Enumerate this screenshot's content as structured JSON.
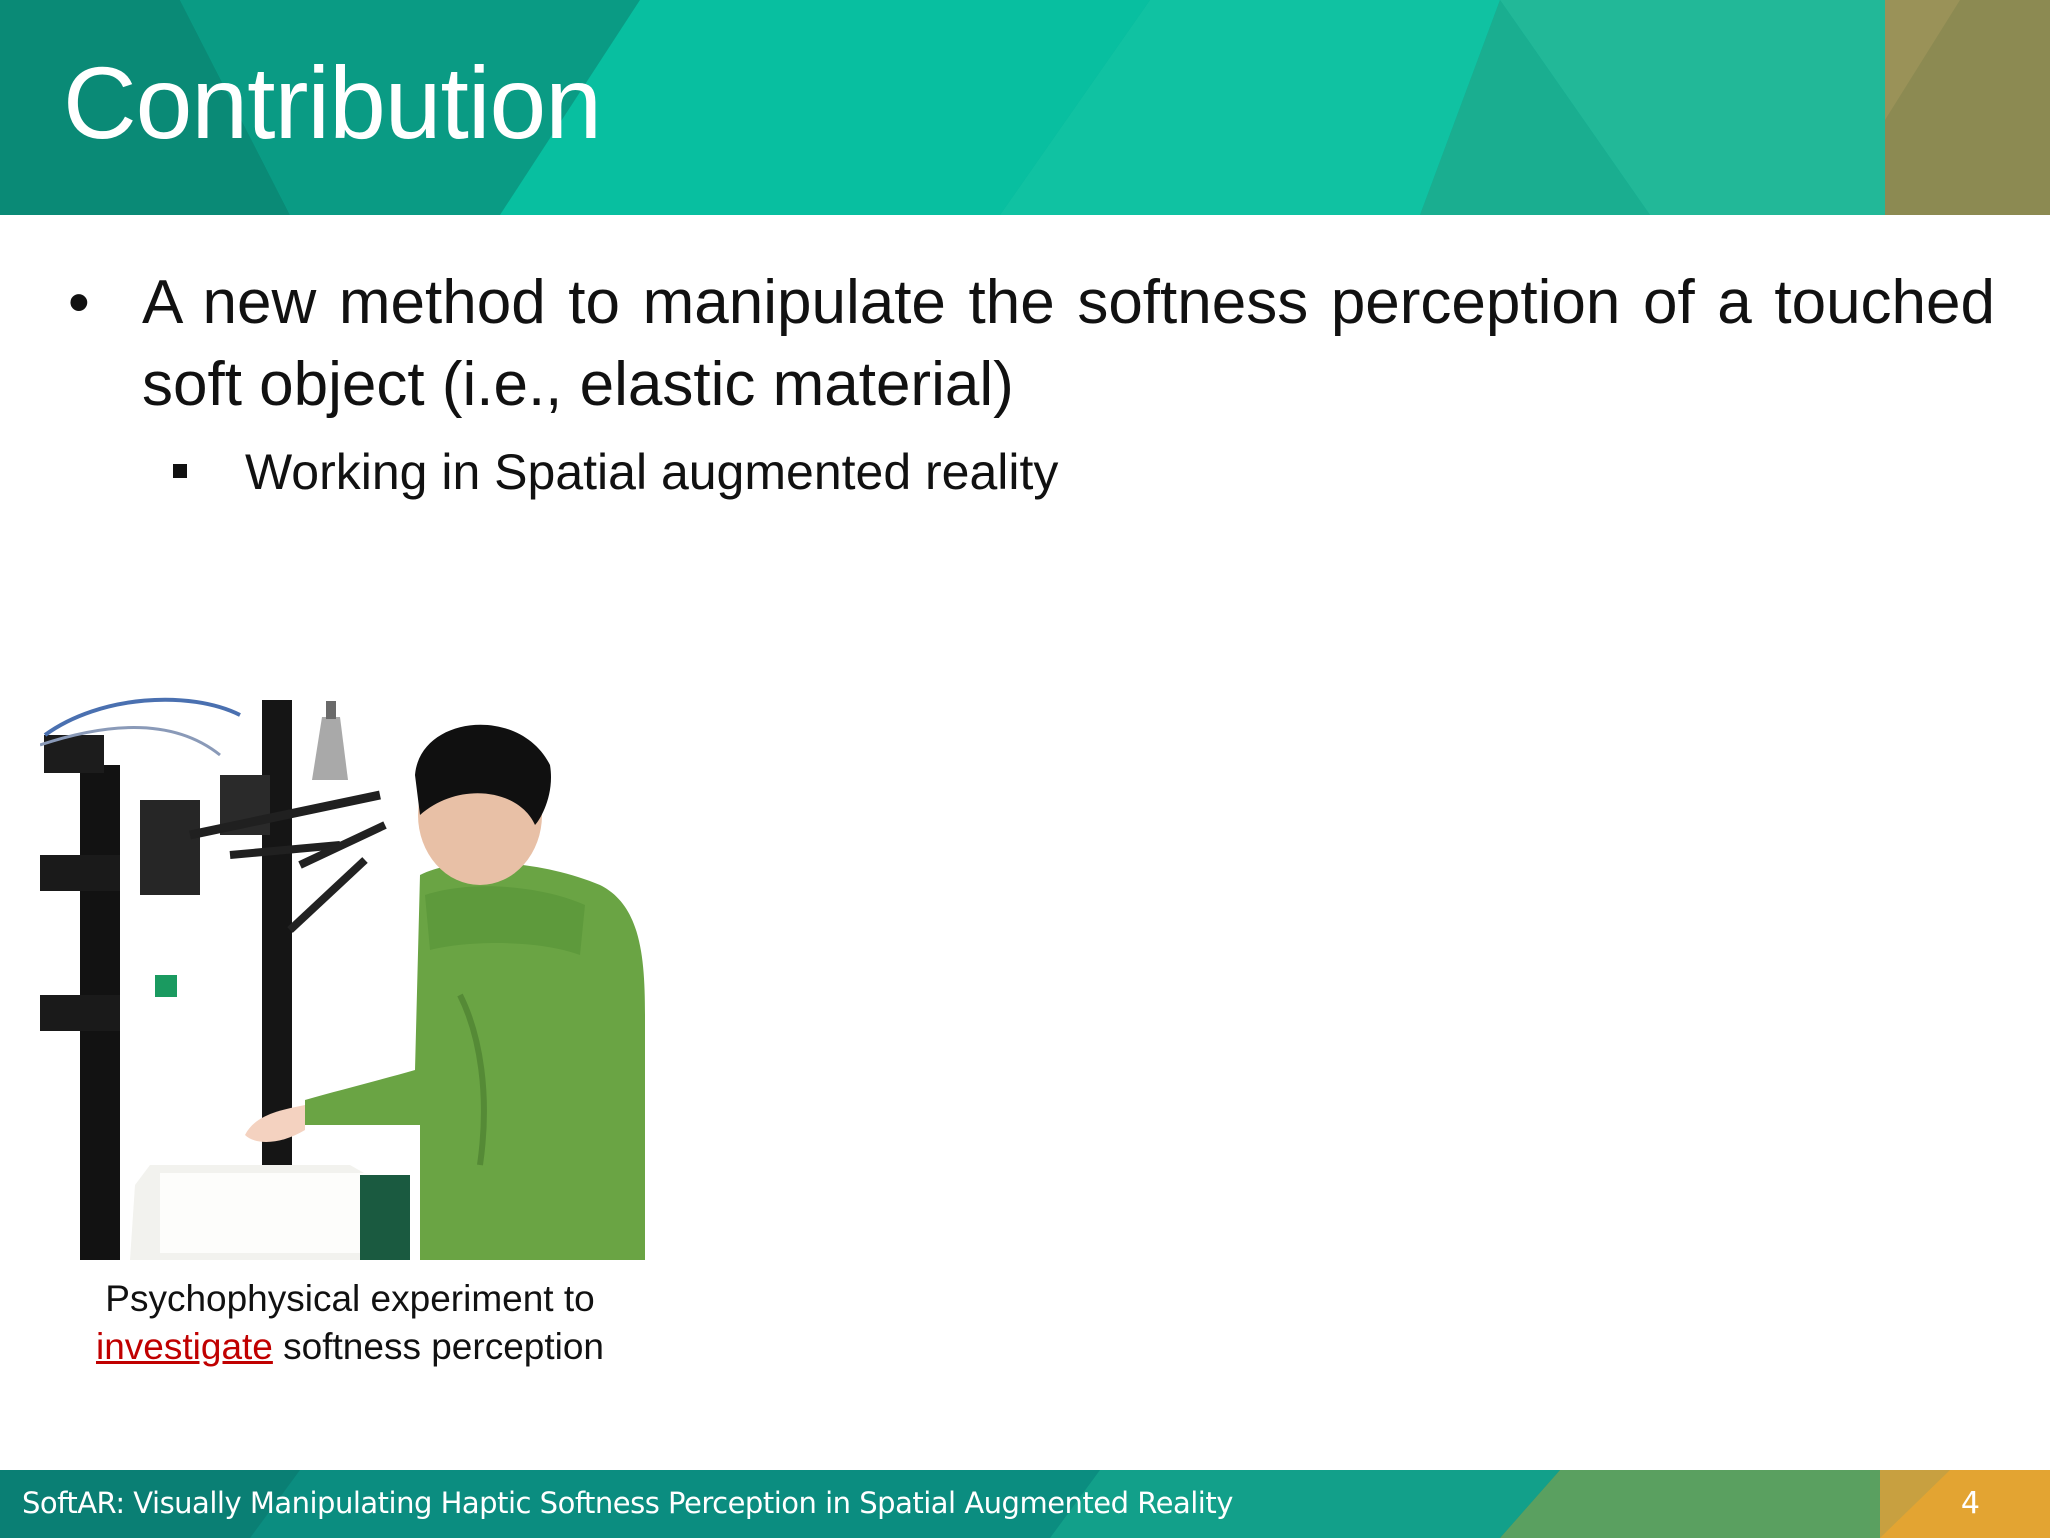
{
  "slide": {
    "title": "Contribution",
    "bullets": [
      {
        "text": "A new method to manipulate the softness perception of a touched soft object (i.e., elastic material)",
        "sub": [
          "Working in Spatial augmented reality"
        ]
      }
    ],
    "bullet_glyph": "•",
    "figure": {
      "caption_line1": "Psychophysical experiment to",
      "caption_link": "investigate",
      "caption_rest": " softness perception"
    },
    "footer": {
      "text": "SoftAR: Visually Manipulating Haptic Softness Perception in Spatial Augmented Reality",
      "page_number": "4"
    }
  },
  "colors": {
    "header_teal": "#00b99a",
    "header_dark": "#0a8c78",
    "accent_olive": "#8a8a50",
    "footer_teal": "#0a8f80",
    "accent_orange": "#e0a030",
    "link_red": "#c00000"
  }
}
